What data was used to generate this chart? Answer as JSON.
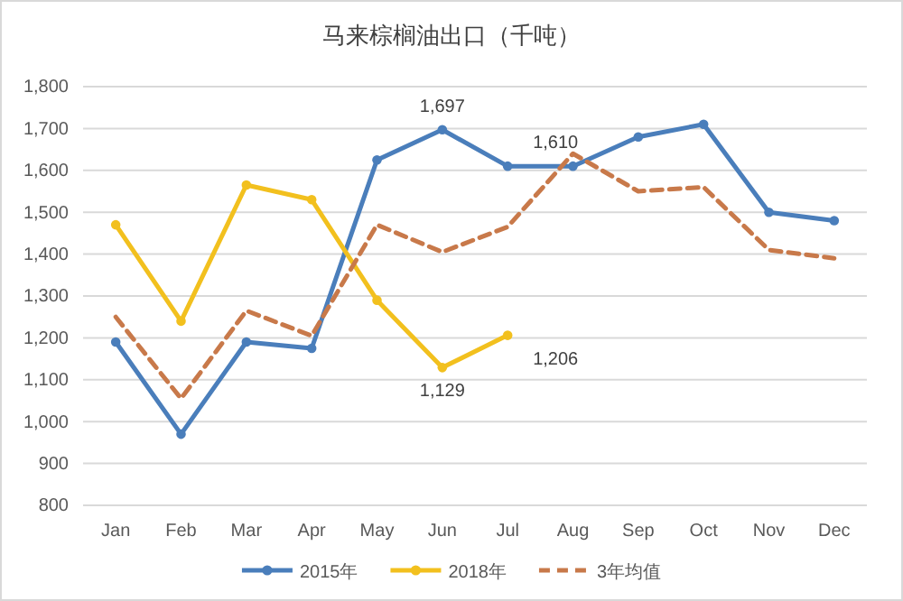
{
  "chart_data": {
    "type": "line",
    "title": "马来棕榈油出口（千吨）",
    "categories": [
      "Jan",
      "Feb",
      "Mar",
      "Apr",
      "May",
      "Jun",
      "Jul",
      "Aug",
      "Sep",
      "Oct",
      "Nov",
      "Dec"
    ],
    "series": [
      {
        "name": "2015年",
        "color": "#4a7ebb",
        "marker": "circle",
        "line_style": "solid",
        "values": [
          1190,
          970,
          1190,
          1175,
          1625,
          1697,
          1610,
          1610,
          1680,
          1710,
          1500,
          1480
        ],
        "value_labels": [
          null,
          null,
          null,
          null,
          null,
          "1,697",
          "1,610",
          null,
          null,
          null,
          null,
          null
        ]
      },
      {
        "name": "2018年",
        "color": "#f2c01e",
        "marker": "circle",
        "line_style": "solid",
        "values": [
          1470,
          1240,
          1565,
          1530,
          1290,
          1129,
          1206,
          null,
          null,
          null,
          null,
          null
        ],
        "value_labels": [
          null,
          null,
          null,
          null,
          null,
          "1,129",
          "1,206",
          null,
          null,
          null,
          null,
          null
        ]
      },
      {
        "name": "3年均值",
        "color": "#c8794a",
        "marker": "none",
        "line_style": "dashed",
        "values": [
          1250,
          1055,
          1265,
          1205,
          1470,
          1405,
          1465,
          1640,
          1550,
          1560,
          1410,
          1390
        ]
      }
    ],
    "ylim": [
      800,
      1800
    ],
    "yticks": [
      {
        "value": 800,
        "label": "800"
      },
      {
        "value": 900,
        "label": "900"
      },
      {
        "value": 1000,
        "label": "1,000"
      },
      {
        "value": 1100,
        "label": "1,100"
      },
      {
        "value": 1200,
        "label": "1,200"
      },
      {
        "value": 1300,
        "label": "1,300"
      },
      {
        "value": 1400,
        "label": "1,400"
      },
      {
        "value": 1500,
        "label": "1,500"
      },
      {
        "value": 1600,
        "label": "1,600"
      },
      {
        "value": 1700,
        "label": "1,700"
      },
      {
        "value": 1800,
        "label": "1,800"
      }
    ],
    "grid": "y",
    "legend": "bottom"
  }
}
